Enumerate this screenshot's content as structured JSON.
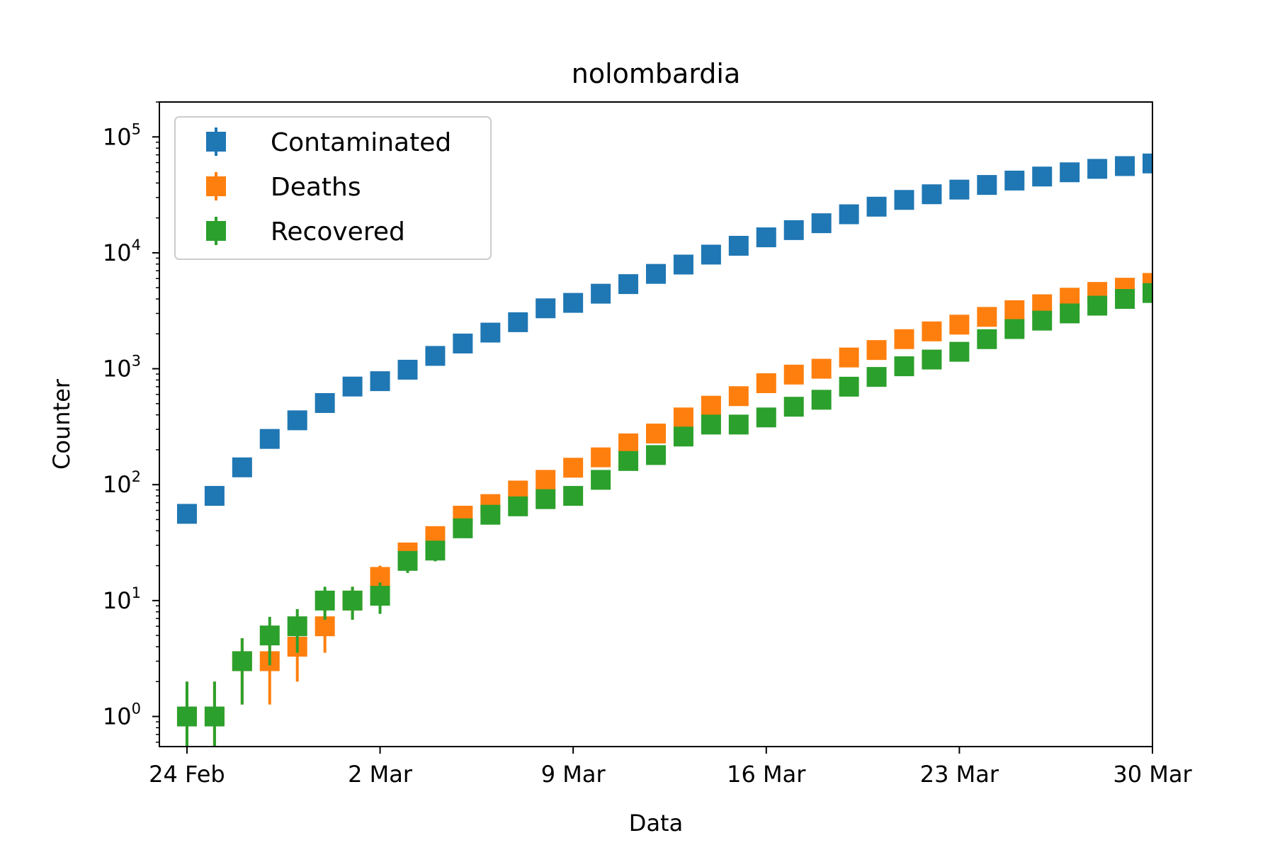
{
  "chart_data": {
    "type": "scatter",
    "title": "nolombardia",
    "xlabel": "Data",
    "ylabel": "Counter",
    "yscale": "log",
    "ylim": [
      0.55,
      200000
    ],
    "xlim": [
      "2020-02-23",
      "2020-03-30"
    ],
    "x_ticks": [
      {
        "date": "2020-02-24",
        "label": "24 Feb"
      },
      {
        "date": "2020-03-02",
        "label": "2 Mar"
      },
      {
        "date": "2020-03-09",
        "label": "9 Mar"
      },
      {
        "date": "2020-03-16",
        "label": "16 Mar"
      },
      {
        "date": "2020-03-23",
        "label": "23 Mar"
      },
      {
        "date": "2020-03-30",
        "label": "30 Mar"
      }
    ],
    "y_ticks": [
      {
        "value": 1,
        "base": "10",
        "exp": "0"
      },
      {
        "value": 10,
        "base": "10",
        "exp": "1"
      },
      {
        "value": 100,
        "base": "10",
        "exp": "2"
      },
      {
        "value": 1000,
        "base": "10",
        "exp": "3"
      },
      {
        "value": 10000,
        "base": "10",
        "exp": "4"
      },
      {
        "value": 100000,
        "base": "10",
        "exp": "5"
      }
    ],
    "grid": false,
    "legend_position": "top-left",
    "error_bars": "sqrt",
    "x": [
      "2020-02-24",
      "2020-02-25",
      "2020-02-26",
      "2020-02-27",
      "2020-02-28",
      "2020-02-29",
      "2020-03-01",
      "2020-03-02",
      "2020-03-03",
      "2020-03-04",
      "2020-03-05",
      "2020-03-06",
      "2020-03-07",
      "2020-03-08",
      "2020-03-09",
      "2020-03-10",
      "2020-03-11",
      "2020-03-12",
      "2020-03-13",
      "2020-03-14",
      "2020-03-15",
      "2020-03-16",
      "2020-03-17",
      "2020-03-18",
      "2020-03-19",
      "2020-03-20",
      "2020-03-21",
      "2020-03-22",
      "2020-03-23",
      "2020-03-24",
      "2020-03-25",
      "2020-03-26",
      "2020-03-27",
      "2020-03-28",
      "2020-03-29",
      "2020-03-30"
    ],
    "series": [
      {
        "name": "Contaminated",
        "color": "#1f77b4",
        "values": [
          56,
          80,
          141,
          248,
          359,
          506,
          702,
          781,
          981,
          1290,
          1650,
          2050,
          2520,
          3320,
          3700,
          4440,
          5370,
          6580,
          7920,
          9650,
          11500,
          13600,
          15700,
          18000,
          21500,
          25000,
          28600,
          32000,
          35100,
          38500,
          42000,
          45500,
          49500,
          53000,
          56000,
          59000
        ]
      },
      {
        "name": "Deaths",
        "color": "#ff7f0e",
        "values": [
          1,
          1,
          3,
          3,
          4,
          6,
          10,
          16,
          26,
          36,
          54,
          68,
          89,
          110,
          140,
          172,
          227,
          276,
          380,
          480,
          580,
          750,
          890,
          1000,
          1250,
          1450,
          1800,
          2100,
          2400,
          2800,
          3200,
          3600,
          4100,
          4600,
          5000,
          5500
        ]
      },
      {
        "name": "Recovered",
        "color": "#2ca02c",
        "values": [
          1,
          1,
          3,
          5,
          6,
          10,
          10,
          11,
          22,
          27,
          42,
          55,
          65,
          75,
          80,
          110,
          160,
          180,
          260,
          330,
          330,
          380,
          470,
          540,
          700,
          850,
          1050,
          1200,
          1400,
          1800,
          2200,
          2600,
          3000,
          3500,
          4000,
          4500
        ]
      }
    ]
  }
}
